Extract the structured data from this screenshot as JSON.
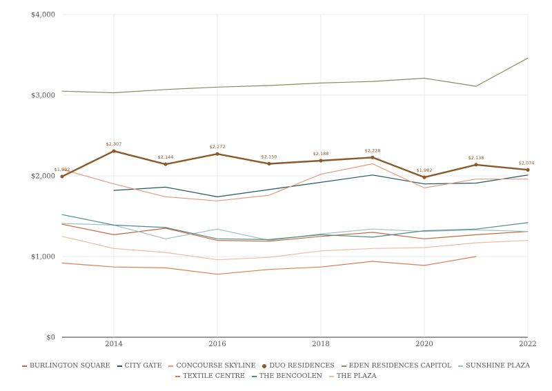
{
  "chart_data": {
    "type": "line",
    "x": [
      2013,
      2014,
      2015,
      2016,
      2017,
      2018,
      2019,
      2020,
      2021,
      2022
    ],
    "xticks": [
      "2014",
      "2016",
      "2018",
      "2020",
      "2022"
    ],
    "yticks": [
      "$0",
      "$1,000",
      "$2,000",
      "$3,000",
      "$4,000"
    ],
    "ylim": [
      0,
      4000
    ],
    "xlim": [
      2013,
      2022
    ],
    "legend_position": "bottom",
    "series": [
      {
        "name": "BURLINGTON SQUARE",
        "color": "#c8643a",
        "width": 1.2,
        "values": [
          1400,
          1270,
          1350,
          1200,
          1190,
          1250,
          1300,
          1220,
          1270,
          1310
        ]
      },
      {
        "name": "CITY GATE",
        "color": "#1d5a5a",
        "width": 1.2,
        "values": [
          null,
          1820,
          1860,
          1740,
          1830,
          1920,
          2010,
          1900,
          1910,
          2010
        ]
      },
      {
        "name": "CONCOURSE SKYLINE",
        "color": "#e39a7e",
        "width": 1.2,
        "values": [
          2080,
          1900,
          1740,
          1690,
          1760,
          2020,
          2150,
          1850,
          1960,
          1960
        ]
      },
      {
        "name": "DUO RESIDENCES",
        "color": "#8a5a2b",
        "width": 2.4,
        "dots": true,
        "values": [
          1992,
          2307,
          2144,
          2272,
          2150,
          2188,
          2228,
          1982,
          2138,
          2074
        ]
      },
      {
        "name": "EDEN RESIDENCES CAPITOL",
        "color": "#8a8a62",
        "width": 1.2,
        "values": [
          3050,
          3030,
          3070,
          3100,
          3120,
          3150,
          3170,
          3210,
          3110,
          3460
        ]
      },
      {
        "name": "SUNSHINE PLAZA",
        "color": "#9cc2bb",
        "width": 1.2,
        "values": [
          1410,
          1390,
          1220,
          1340,
          1200,
          1280,
          1340,
          1310,
          1330,
          1310
        ]
      },
      {
        "name": "TEXTILE CENTRE",
        "color": "#e07a4e",
        "width": 1.2,
        "values": [
          920,
          870,
          860,
          780,
          840,
          870,
          940,
          890,
          1000,
          null
        ]
      },
      {
        "name": "THE BENCOOLEN",
        "color": "#4e8a86",
        "width": 1.2,
        "values": [
          1520,
          1390,
          1360,
          1220,
          1210,
          1270,
          1240,
          1320,
          1340,
          1420
        ]
      },
      {
        "name": "THE PLAZA",
        "color": "#f0b8a4",
        "width": 1.2,
        "values": [
          1250,
          1100,
          1050,
          960,
          990,
          1070,
          1100,
          1110,
          1170,
          1200
        ]
      }
    ],
    "data_labels": {
      "series": "DUO RESIDENCES",
      "labels": [
        "$1,992",
        "$2,307",
        "$2,144",
        "$2,272",
        "$2,150",
        "$2,188",
        "$2,228",
        "$1,982",
        "$2,138",
        "$2,074"
      ]
    },
    "legend_rows": [
      [
        "BURLINGTON SQUARE",
        "CITY GATE",
        "CONCOURSE SKYLINE",
        "DUO RESIDENCES",
        "EDEN RESIDENCES CAPITOL",
        "SUNSHINE PLAZA"
      ],
      [
        "TEXTILE CENTRE",
        "THE BENCOOLEN",
        "THE PLAZA"
      ]
    ]
  }
}
